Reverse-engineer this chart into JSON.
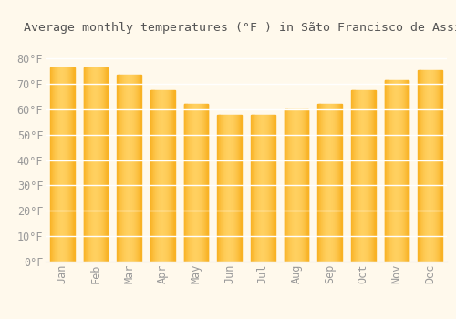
{
  "title": "Average monthly temperatures (°F ) in Sãto Francisco de Assis",
  "months": [
    "Jan",
    "Feb",
    "Mar",
    "Apr",
    "May",
    "Jun",
    "Jul",
    "Aug",
    "Sep",
    "Oct",
    "Nov",
    "Dec"
  ],
  "values": [
    76.5,
    76.5,
    73.5,
    67.5,
    62.0,
    58.0,
    58.0,
    60.0,
    62.0,
    67.5,
    71.5,
    75.5
  ],
  "bar_color_center": "#FFD060",
  "bar_color_edge": "#F5A000",
  "background_color": "#FFF9EC",
  "plot_bg_color": "#FFF9EC",
  "grid_color": "#FFFFFF",
  "text_color": "#999999",
  "axis_color": "#BBBBBB",
  "ylim": [
    0,
    88
  ],
  "yticks": [
    0,
    10,
    20,
    30,
    40,
    50,
    60,
    70,
    80
  ],
  "ytick_labels": [
    "0°F",
    "10°F",
    "20°F",
    "30°F",
    "40°F",
    "50°F",
    "60°F",
    "70°F",
    "80°F"
  ],
  "title_fontsize": 9.5,
  "tick_fontsize": 8.5,
  "font_family": "monospace",
  "bar_width": 0.72
}
